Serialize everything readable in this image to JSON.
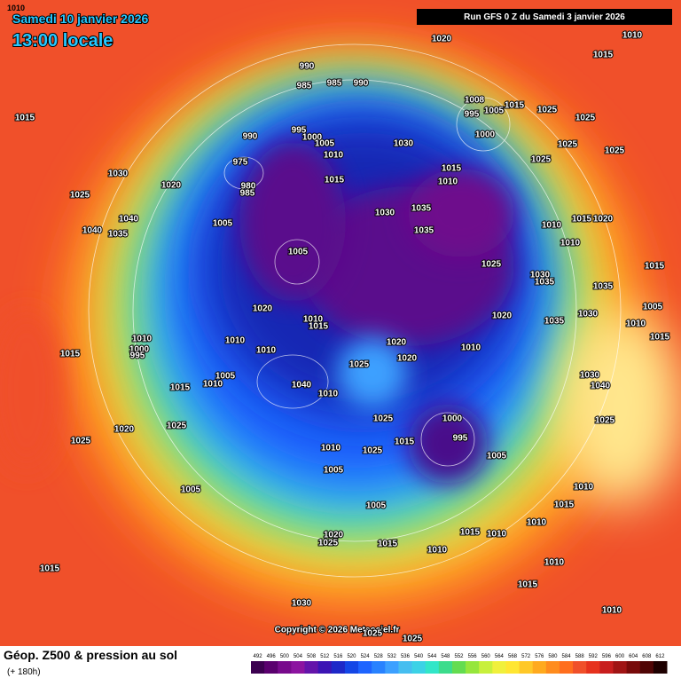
{
  "corner": "1010",
  "title_date": "Samedi 10 janvier 2026",
  "title_time": "13:00 locale",
  "run": "Run GFS 0 Z du Samedi 3 janvier 2026",
  "copyright": "Copyright © 2026 Meteociel.fr",
  "caption": "Géop. Z500 & pression au sol",
  "lead": "(+ 180h)",
  "colorbar": {
    "ticks": [
      492,
      496,
      500,
      504,
      508,
      512,
      516,
      520,
      524,
      528,
      532,
      536,
      540,
      544,
      548,
      552,
      556,
      560,
      564,
      568,
      572,
      576,
      580,
      584,
      588,
      592,
      596,
      600,
      604,
      608,
      612
    ]
  },
  "isobars": [
    "1020",
    "1010",
    "1015",
    "990",
    "985",
    "985",
    "990",
    "1015",
    "1008",
    "995",
    "1005",
    "1015",
    "1025",
    "1025",
    "990",
    "995",
    "1000",
    "1005",
    "1010",
    "1000",
    "1030",
    "1025",
    "1025",
    "1025",
    "975",
    "1030",
    "1020",
    "980",
    "985",
    "1015",
    "1015",
    "1010",
    "1035",
    "1030",
    "1025",
    "1040",
    "1005",
    "1015",
    "1020",
    "1010",
    "1040",
    "1035",
    "1035",
    "1010",
    "1005",
    "1025",
    "1015",
    "1030",
    "1035",
    "1035",
    "1020",
    "1010",
    "1015",
    "1020",
    "1035",
    "1030",
    "1005",
    "1010",
    "1015",
    "1010",
    "1000",
    "995",
    "1010",
    "1020",
    "1010",
    "1015",
    "1010",
    "1025",
    "1020",
    "1005",
    "1010",
    "1040",
    "1015",
    "1010",
    "1030",
    "1040",
    "1000",
    "1025",
    "995",
    "1025",
    "1020",
    "1025",
    "1015",
    "1025",
    "1010",
    "1025",
    "1005",
    "1005",
    "1005",
    "1010",
    "1005",
    "1015",
    "1010",
    "1015",
    "1010",
    "1020",
    "1025",
    "1015",
    "1010",
    "1010",
    "1015",
    "1015",
    "1030",
    "1010",
    "1025",
    "1025"
  ]
}
